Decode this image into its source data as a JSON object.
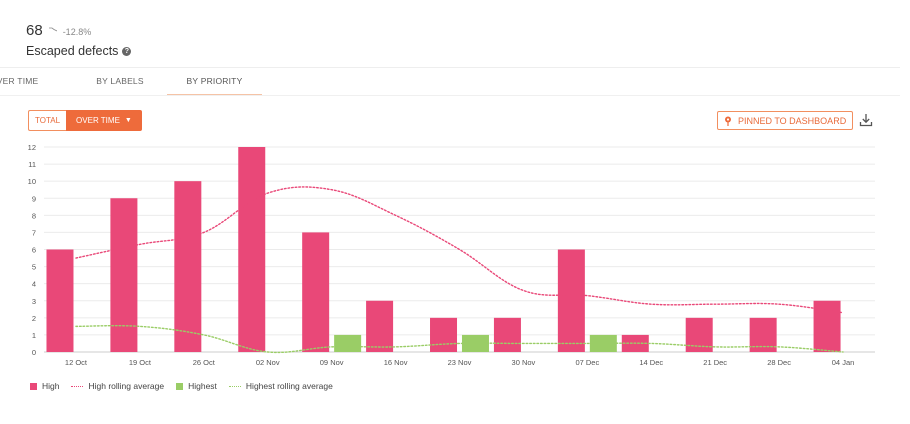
{
  "metric": {
    "value": "68",
    "trend_icon": "trend-line-icon",
    "change": "-12.8%",
    "title": "Escaped defects",
    "help_icon": "?"
  },
  "tabs": [
    {
      "label": "OVER TIME",
      "active": false
    },
    {
      "label": "BY LABELS",
      "active": false
    },
    {
      "label": "BY PRIORITY",
      "active": true
    }
  ],
  "toggle": {
    "total_label": "TOTAL",
    "over_time_label": "OVER TIME",
    "caret": "▼"
  },
  "actions": {
    "pin_label": "PINNED TO DASHBOARD",
    "pin_icon": "pin-icon",
    "download_icon": "download-icon"
  },
  "colors": {
    "high": "#e94878",
    "highest": "#9acd66",
    "accent": "#ee6b3b"
  },
  "chart_data": {
    "type": "bar",
    "categories": [
      "12 Oct",
      "19 Oct",
      "26 Oct",
      "02 Nov",
      "09 Nov",
      "16 Nov",
      "23 Nov",
      "30 Nov",
      "07 Dec",
      "14 Dec",
      "21 Dec",
      "28 Dec",
      "04 Jan"
    ],
    "series": [
      {
        "name": "High",
        "kind": "bar",
        "values": [
          6,
          9,
          10,
          12,
          7,
          3,
          2,
          2,
          6,
          1,
          2,
          2,
          3
        ]
      },
      {
        "name": "Highest",
        "kind": "bar",
        "values": [
          0,
          0,
          0,
          0,
          1,
          0,
          1,
          0,
          1,
          0,
          0,
          0,
          0
        ]
      },
      {
        "name": "High rolling average",
        "kind": "line",
        "values": [
          5.5,
          6.3,
          7.0,
          9.3,
          9.5,
          8.0,
          6.0,
          3.6,
          3.3,
          2.8,
          2.8,
          2.8,
          2.3
        ]
      },
      {
        "name": "Highest rolling average",
        "kind": "line",
        "values": [
          1.5,
          1.5,
          1.0,
          0.0,
          0.3,
          0.3,
          0.5,
          0.5,
          0.5,
          0.5,
          0.3,
          0.3,
          0.0
        ]
      }
    ],
    "yticks": [
      0,
      1,
      2,
      3,
      4,
      5,
      6,
      7,
      8,
      9,
      10,
      11,
      12
    ],
    "ylim": [
      0,
      12
    ],
    "grid": true,
    "legend": "bottom-left"
  }
}
